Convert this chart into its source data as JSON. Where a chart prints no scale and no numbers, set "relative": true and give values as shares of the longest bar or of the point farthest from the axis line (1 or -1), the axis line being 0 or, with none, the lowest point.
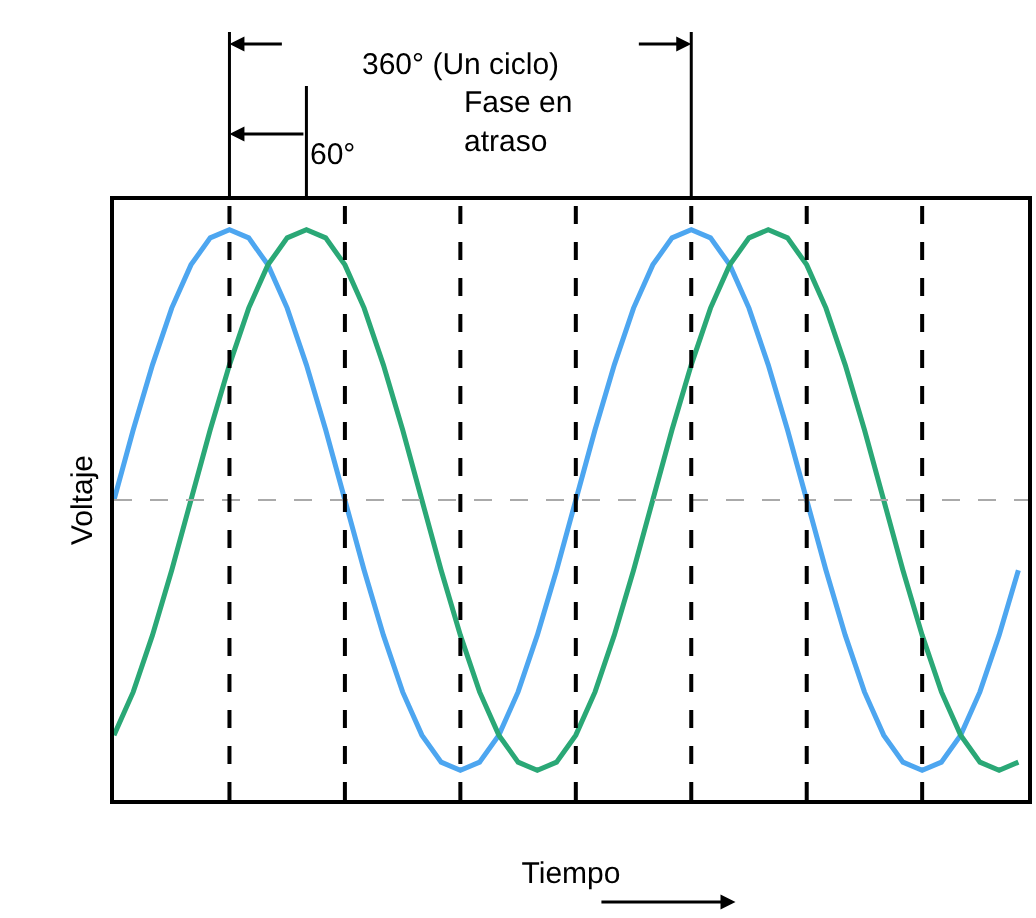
{
  "chart_data": {
    "type": "line",
    "relative": true,
    "xlabel": "Tiempo",
    "ylabel": "Voltaje",
    "categories": [
      null,
      null,
      null,
      null,
      null,
      null,
      null,
      null,
      null,
      null,
      null,
      null,
      null,
      null,
      null,
      null,
      null,
      null,
      null,
      null,
      null,
      null,
      null,
      null,
      null,
      null,
      null,
      null,
      null,
      null,
      null,
      null,
      null,
      null,
      null,
      null,
      null,
      null,
      null,
      null,
      null,
      null,
      null,
      null,
      null,
      null,
      null,
      null
    ],
    "tick_labels": false,
    "grid": "x",
    "marker": "none",
    "line_style": "solid",
    "series": [
      {
        "color": "#4da6f0",
        "values": [
          0,
          0.26,
          0.5,
          0.71,
          0.87,
          0.97,
          1,
          0.97,
          0.87,
          0.71,
          0.5,
          0.26,
          0,
          -0.26,
          -0.5,
          -0.71,
          -0.87,
          -0.97,
          -1,
          -0.97,
          -0.87,
          -0.71,
          -0.5,
          -0.26,
          0,
          0.26,
          0.5,
          0.71,
          0.87,
          0.97,
          1,
          0.97,
          0.87,
          0.71,
          0.5,
          0.26,
          0,
          -0.26,
          -0.5,
          -0.71,
          -0.87,
          -0.97,
          -1,
          -0.97,
          -0.87,
          -0.71,
          -0.5,
          -0.26
        ]
      },
      {
        "color": "#2aa876",
        "values": [
          -0.87,
          -0.71,
          -0.5,
          -0.26,
          0,
          0.26,
          0.5,
          0.71,
          0.87,
          0.97,
          1,
          0.97,
          0.87,
          0.71,
          0.5,
          0.26,
          0,
          -0.26,
          -0.5,
          -0.71,
          -0.87,
          -0.97,
          -1,
          -0.97,
          -0.87,
          -0.71,
          -0.5,
          -0.26,
          0,
          0.26,
          0.5,
          0.71,
          0.87,
          0.97,
          1,
          0.97,
          0.87,
          0.71,
          0.5,
          0.26,
          0,
          -0.26,
          -0.5,
          -0.71,
          -0.87,
          -0.97,
          -1,
          -0.97
        ]
      }
    ],
    "ref_lines": [
      {
        "axis": "y",
        "value": 0,
        "color": "#aaaaaa",
        "line_style": "dashed"
      }
    ],
    "annotations": [
      "360° (Un ciclo)",
      "60°",
      "Fase en atraso"
    ]
  }
}
